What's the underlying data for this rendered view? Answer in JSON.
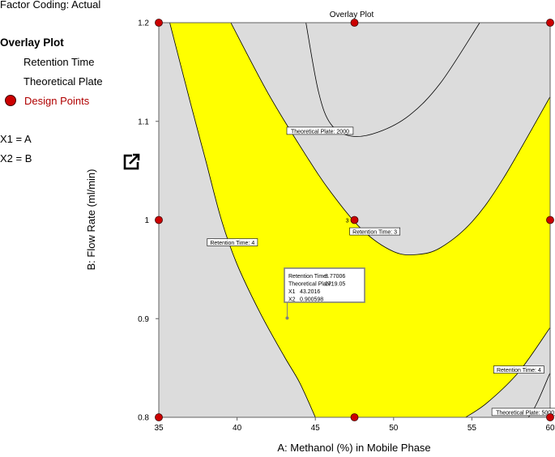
{
  "sidebar": {
    "factor_coding": "Factor Coding: Actual",
    "legend_title": "Overlay Plot",
    "legend_items": [
      "Retention Time",
      "Theoretical Plate",
      "Design Points"
    ],
    "factors": [
      "X1 = A",
      "X2 = B"
    ]
  },
  "colors": {
    "feasible_region": "#ffff00",
    "background_region": "#dcdcdc",
    "design_point": "#cc0000",
    "flag_border": "#808080"
  },
  "chart_data": {
    "type": "contour-overlay",
    "title": "Overlay Plot",
    "xlabel": "A: Methanol (%) in Mobile Phase",
    "ylabel": "B: Flow Rate (ml/min)",
    "xlim": [
      35,
      60
    ],
    "ylim": [
      0.8,
      1.2
    ],
    "xticks": [
      "35",
      "40",
      "45",
      "50",
      "55",
      "60"
    ],
    "yticks": [
      "0.8",
      "0.9",
      "1",
      "1.1",
      "1.2"
    ],
    "contours": [
      {
        "label": "Theoretical Plate: 2000",
        "label_at": [
          45.3,
          1.09
        ],
        "points": [
          [
            44.4,
            1.2
          ],
          [
            45.2,
            1.13
          ],
          [
            46.0,
            1.097
          ],
          [
            47.3,
            1.085
          ],
          [
            49.0,
            1.089
          ],
          [
            51.0,
            1.106
          ],
          [
            53.0,
            1.139
          ],
          [
            55.5,
            1.2
          ]
        ]
      },
      {
        "label": "Theoretical Plate: 5000",
        "label_at": [
          58.4,
          0.805
        ],
        "points": [
          [
            45.2,
            0.8
          ],
          [
            46.5,
            0.785
          ],
          [
            48.5,
            0.773
          ],
          [
            51.0,
            0.769
          ],
          [
            53.0,
            0.772
          ],
          [
            55.0,
            0.781
          ],
          [
            57.0,
            0.795
          ],
          [
            58.6,
            0.8
          ],
          [
            60,
            0.845
          ],
          [
            60,
            0.8
          ]
        ]
      },
      {
        "label": "Retention Time: 3",
        "label_at": [
          48.8,
          0.988
        ],
        "points": [
          [
            39.6,
            1.2
          ],
          [
            42.0,
            1.128
          ],
          [
            44.3,
            1.068
          ],
          [
            46.0,
            1.028
          ],
          [
            48.0,
            0.99
          ],
          [
            50.0,
            0.968
          ],
          [
            51.5,
            0.965
          ],
          [
            53.0,
            0.972
          ],
          [
            55.0,
            0.998
          ],
          [
            57.0,
            1.042
          ],
          [
            60,
            1.125
          ]
        ]
      },
      {
        "label": "Retention Time: 4",
        "label_at": [
          39.7,
          0.977
        ],
        "points": [
          [
            35.7,
            1.2
          ],
          [
            37.0,
            1.12
          ],
          [
            38.0,
            1.06
          ],
          [
            39.0,
            1.0
          ],
          [
            40.0,
            0.955
          ],
          [
            41.5,
            0.905
          ],
          [
            43.0,
            0.862
          ],
          [
            44.0,
            0.835
          ],
          [
            45.0,
            0.8
          ]
        ]
      },
      {
        "label": "Retention Time: 4",
        "label_at": [
          58.0,
          0.848
        ],
        "points": [
          [
            54.6,
            0.8
          ],
          [
            56.0,
            0.815
          ],
          [
            58.0,
            0.846
          ],
          [
            60,
            0.891
          ]
        ]
      }
    ],
    "design_points": [
      {
        "x": 35,
        "y": 1.2
      },
      {
        "x": 47.5,
        "y": 1.2
      },
      {
        "x": 60,
        "y": 1.2
      },
      {
        "x": 35,
        "y": 1.0
      },
      {
        "x": 47.5,
        "y": 1.0,
        "count": "3"
      },
      {
        "x": 60,
        "y": 1.0
      },
      {
        "x": 35,
        "y": 0.8
      },
      {
        "x": 47.5,
        "y": 0.8
      },
      {
        "x": 60,
        "y": 0.8
      }
    ],
    "flag": {
      "x": 43.2016,
      "y": 0.900598,
      "lines": [
        "Retention Time:",
        "Theoretical Plate:",
        "X1",
        "X2"
      ],
      "values": [
        "3.77006",
        "2719.05",
        "43.2016",
        "0.900598"
      ]
    }
  }
}
